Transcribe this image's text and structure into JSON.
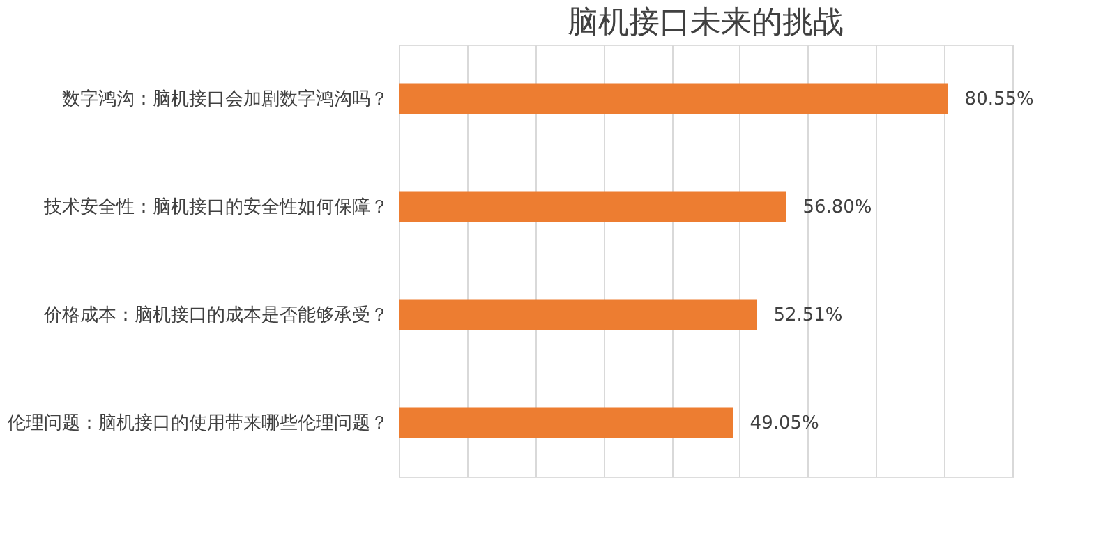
{
  "chart_data": {
    "type": "bar",
    "orientation": "horizontal",
    "title": "脑机接口未来的挑战",
    "categories": [
      "数字鸿沟：脑机接口会加剧数字鸿沟吗？",
      "技术安全性：脑机接口的安全性如何保障？",
      "价格成本：脑机接口的成本是否能够承受？",
      "伦理问题：脑机接口的使用带来哪些伦理问题？"
    ],
    "values": [
      80.55,
      56.8,
      52.51,
      49.05
    ],
    "value_labels": [
      "80.55%",
      "56.80%",
      "52.51%",
      "49.05%"
    ],
    "color": "#ed7d31",
    "xlim": [
      0,
      90
    ],
    "xticks": [
      {
        "value": 0,
        "label": null
      },
      {
        "value": 10,
        "label": null
      },
      {
        "value": 20,
        "label": null
      },
      {
        "value": 30,
        "label": null
      },
      {
        "value": 40,
        "label": null
      },
      {
        "value": 50,
        "label": null
      },
      {
        "value": 60,
        "label": null
      },
      {
        "value": 70,
        "label": null
      },
      {
        "value": 80,
        "label": null
      },
      {
        "value": 90,
        "label": null
      }
    ],
    "grid": "x",
    "tick_labels": "y"
  }
}
